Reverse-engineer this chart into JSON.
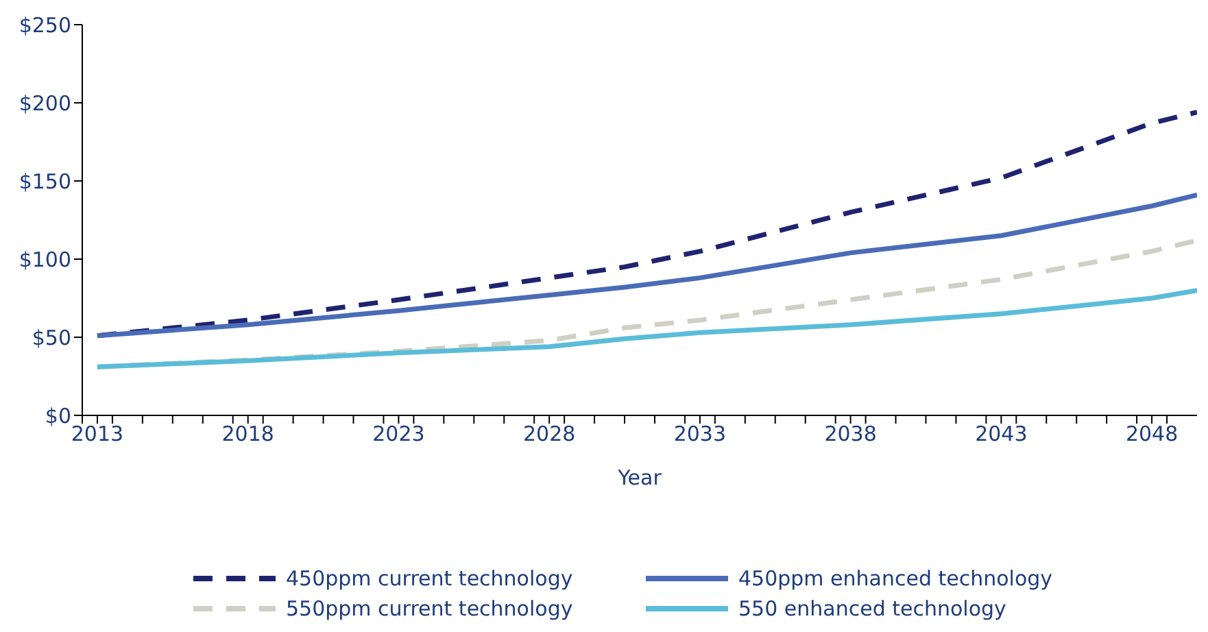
{
  "chart_data": {
    "type": "line",
    "xlabel": "Year",
    "x": [
      2013,
      2018,
      2023,
      2028,
      2030.5,
      2033,
      2038,
      2043,
      2048,
      2049.5
    ],
    "xlim": [
      2012.5,
      2049.5
    ],
    "xticks": [
      2013,
      2018,
      2023,
      2028,
      2033,
      2038,
      2043,
      2048,
      {
        "value": 2012.5,
        "label": null
      },
      {
        "value": 2013.5,
        "label": null
      },
      {
        "value": 2014.5,
        "label": null
      },
      {
        "value": 2015.5,
        "label": null
      },
      {
        "value": 2016.5,
        "label": null
      },
      {
        "value": 2017.5,
        "label": null
      },
      {
        "value": 2018.5,
        "label": null
      },
      {
        "value": 2019.5,
        "label": null
      },
      {
        "value": 2020.5,
        "label": null
      },
      {
        "value": 2021.5,
        "label": null
      },
      {
        "value": 2022.5,
        "label": null
      },
      {
        "value": 2023.5,
        "label": null
      },
      {
        "value": 2024.5,
        "label": null
      },
      {
        "value": 2025.5,
        "label": null
      },
      {
        "value": 2026.5,
        "label": null
      },
      {
        "value": 2027.5,
        "label": null
      },
      {
        "value": 2028.5,
        "label": null
      },
      {
        "value": 2029.5,
        "label": null
      },
      {
        "value": 2030.5,
        "label": null
      },
      {
        "value": 2031.5,
        "label": null
      },
      {
        "value": 2032.5,
        "label": null
      },
      {
        "value": 2033.5,
        "label": null
      },
      {
        "value": 2034.5,
        "label": null
      },
      {
        "value": 2035.5,
        "label": null
      },
      {
        "value": 2036.5,
        "label": null
      },
      {
        "value": 2037.5,
        "label": null
      },
      {
        "value": 2038.5,
        "label": null
      },
      {
        "value": 2039.5,
        "label": null
      },
      {
        "value": 2040.5,
        "label": null
      },
      {
        "value": 2041.5,
        "label": null
      },
      {
        "value": 2042.5,
        "label": null
      },
      {
        "value": 2043.5,
        "label": null
      },
      {
        "value": 2044.5,
        "label": null
      },
      {
        "value": 2045.5,
        "label": null
      },
      {
        "value": 2046.5,
        "label": null
      },
      {
        "value": 2047.5,
        "label": null
      },
      {
        "value": 2048.5,
        "label": null
      }
    ],
    "ylim": [
      0,
      250
    ],
    "yticks": [
      {
        "value": 0,
        "label": "$0"
      },
      {
        "value": 50,
        "label": "$50"
      },
      {
        "value": 100,
        "label": "$100"
      },
      {
        "value": 150,
        "label": "$150"
      },
      {
        "value": 200,
        "label": "$200"
      },
      {
        "value": 250,
        "label": "$250"
      }
    ],
    "grid": false,
    "legend": "bottom",
    "marker": "none",
    "series": [
      {
        "name": "450ppm current technology",
        "color": "#1f2370",
        "line_style": "dashed",
        "values": [
          51,
          61,
          74,
          88,
          95,
          105,
          130,
          152,
          187,
          194
        ]
      },
      {
        "name": "450ppm enhanced technology",
        "color": "#4a6cb8",
        "line_style": "solid",
        "values": [
          51,
          58,
          67,
          77,
          82,
          88,
          104,
          115,
          134,
          141
        ]
      },
      {
        "name": "550ppm current technology",
        "color": "#cfcfc4",
        "line_style": "dashed",
        "values": [
          31,
          35.5,
          41,
          48,
          56,
          61,
          74,
          87,
          105,
          112
        ]
      },
      {
        "name": "550 enhanced technology",
        "color": "#5bbcd9",
        "line_style": "solid",
        "values": [
          31,
          35,
          40,
          44,
          49,
          53,
          58,
          65,
          75,
          80
        ]
      }
    ]
  }
}
